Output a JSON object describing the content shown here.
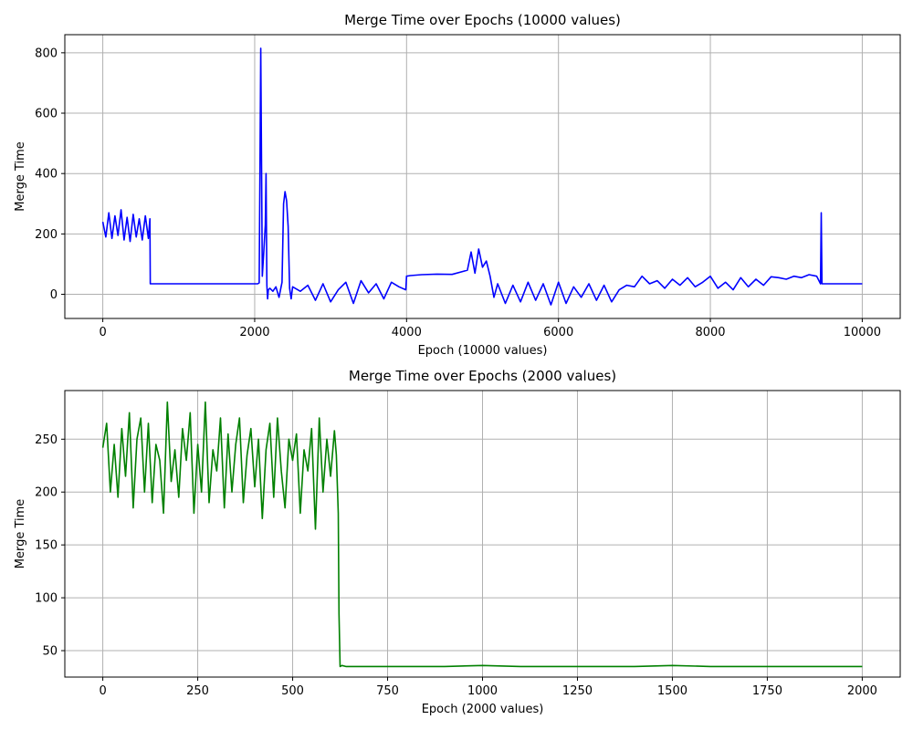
{
  "chart_data": [
    {
      "type": "line",
      "title": "Merge Time over Epochs (10000 values)",
      "xlabel": "Epoch (10000 values)",
      "ylabel": "Merge Time",
      "xlim": [
        -500,
        10500
      ],
      "ylim": [
        -80,
        860
      ],
      "xticks": [
        0,
        2000,
        4000,
        6000,
        8000,
        10000
      ],
      "yticks": [
        0,
        200,
        400,
        600,
        800
      ],
      "grid": true,
      "series": [
        {
          "color": "#0000ff",
          "x": [
            0,
            40,
            80,
            120,
            160,
            200,
            240,
            280,
            320,
            360,
            400,
            440,
            480,
            520,
            560,
            600,
            620,
            625,
            700,
            1000,
            1500,
            2000,
            2040,
            2060,
            2080,
            2100,
            2120,
            2140,
            2150,
            2160,
            2170,
            2180,
            2200,
            2240,
            2280,
            2320,
            2360,
            2380,
            2400,
            2420,
            2440,
            2460,
            2480,
            2500,
            2600,
            2700,
            2800,
            2900,
            3000,
            3100,
            3200,
            3300,
            3400,
            3500,
            3600,
            3700,
            3800,
            3900,
            3990,
            4000,
            4050,
            4200,
            4400,
            4600,
            4800,
            4850,
            4900,
            4950,
            5000,
            5050,
            5100,
            5150,
            5200,
            5300,
            5400,
            5500,
            5600,
            5700,
            5800,
            5900,
            6000,
            6100,
            6200,
            6300,
            6400,
            6500,
            6600,
            6700,
            6800,
            6900,
            7000,
            7100,
            7200,
            7300,
            7400,
            7500,
            7600,
            7700,
            7800,
            7900,
            8000,
            8100,
            8200,
            8300,
            8400,
            8500,
            8600,
            8700,
            8800,
            8900,
            9000,
            9100,
            9200,
            9300,
            9400,
            9450,
            9460,
            9470,
            9480,
            9600,
            9800,
            10000
          ],
          "y": [
            240,
            190,
            270,
            185,
            260,
            195,
            280,
            180,
            255,
            175,
            265,
            190,
            250,
            180,
            260,
            185,
            250,
            35,
            35,
            35,
            35,
            35,
            35,
            38,
            815,
            60,
            140,
            230,
            400,
            30,
            -15,
            15,
            20,
            10,
            25,
            -10,
            40,
            300,
            340,
            310,
            225,
            20,
            -15,
            25,
            10,
            30,
            -20,
            35,
            -25,
            15,
            40,
            -30,
            45,
            5,
            35,
            -15,
            40,
            25,
            15,
            60,
            62,
            65,
            67,
            66,
            80,
            140,
            70,
            150,
            90,
            110,
            60,
            -10,
            35,
            -30,
            30,
            -25,
            40,
            -20,
            35,
            -35,
            40,
            -30,
            25,
            -10,
            35,
            -20,
            30,
            -25,
            15,
            30,
            25,
            60,
            35,
            45,
            20,
            50,
            30,
            55,
            25,
            40,
            60,
            20,
            40,
            15,
            55,
            25,
            50,
            30,
            58,
            55,
            50,
            60,
            55,
            65,
            60,
            35,
            270,
            35,
            35,
            35,
            35,
            35
          ]
        }
      ]
    },
    {
      "type": "line",
      "title": "Merge Time over Epochs (2000 values)",
      "xlabel": "Epoch (2000 values)",
      "ylabel": "Merge Time",
      "xlim": [
        -100,
        2100
      ],
      "ylim": [
        25,
        296
      ],
      "xticks": [
        0,
        250,
        500,
        750,
        1000,
        1250,
        1500,
        1750,
        2000
      ],
      "yticks": [
        50,
        100,
        150,
        200,
        250
      ],
      "grid": true,
      "series": [
        {
          "color": "#008000",
          "x": [
            0,
            10,
            20,
            30,
            40,
            50,
            60,
            70,
            80,
            90,
            100,
            110,
            120,
            130,
            140,
            150,
            160,
            170,
            180,
            190,
            200,
            210,
            220,
            230,
            240,
            250,
            260,
            270,
            280,
            290,
            300,
            310,
            320,
            330,
            340,
            350,
            360,
            370,
            380,
            390,
            400,
            410,
            420,
            430,
            440,
            450,
            460,
            470,
            480,
            490,
            500,
            510,
            520,
            530,
            540,
            550,
            560,
            570,
            580,
            590,
            600,
            610,
            615,
            620,
            622,
            625,
            630,
            640,
            700,
            800,
            900,
            1000,
            1100,
            1200,
            1300,
            1400,
            1500,
            1600,
            1700,
            1800,
            1900,
            2000
          ],
          "y": [
            242,
            265,
            200,
            245,
            195,
            260,
            215,
            275,
            185,
            250,
            270,
            200,
            265,
            190,
            245,
            230,
            180,
            285,
            210,
            240,
            195,
            260,
            230,
            275,
            180,
            245,
            200,
            285,
            190,
            240,
            220,
            270,
            185,
            255,
            200,
            245,
            270,
            190,
            235,
            260,
            205,
            250,
            175,
            240,
            265,
            195,
            270,
            220,
            185,
            250,
            230,
            255,
            180,
            240,
            220,
            260,
            165,
            270,
            200,
            250,
            215,
            258,
            235,
            180,
            85,
            35,
            36,
            35,
            35,
            35,
            35,
            36,
            35,
            35,
            35,
            35,
            36,
            35,
            35,
            35,
            35,
            35
          ]
        }
      ]
    }
  ]
}
